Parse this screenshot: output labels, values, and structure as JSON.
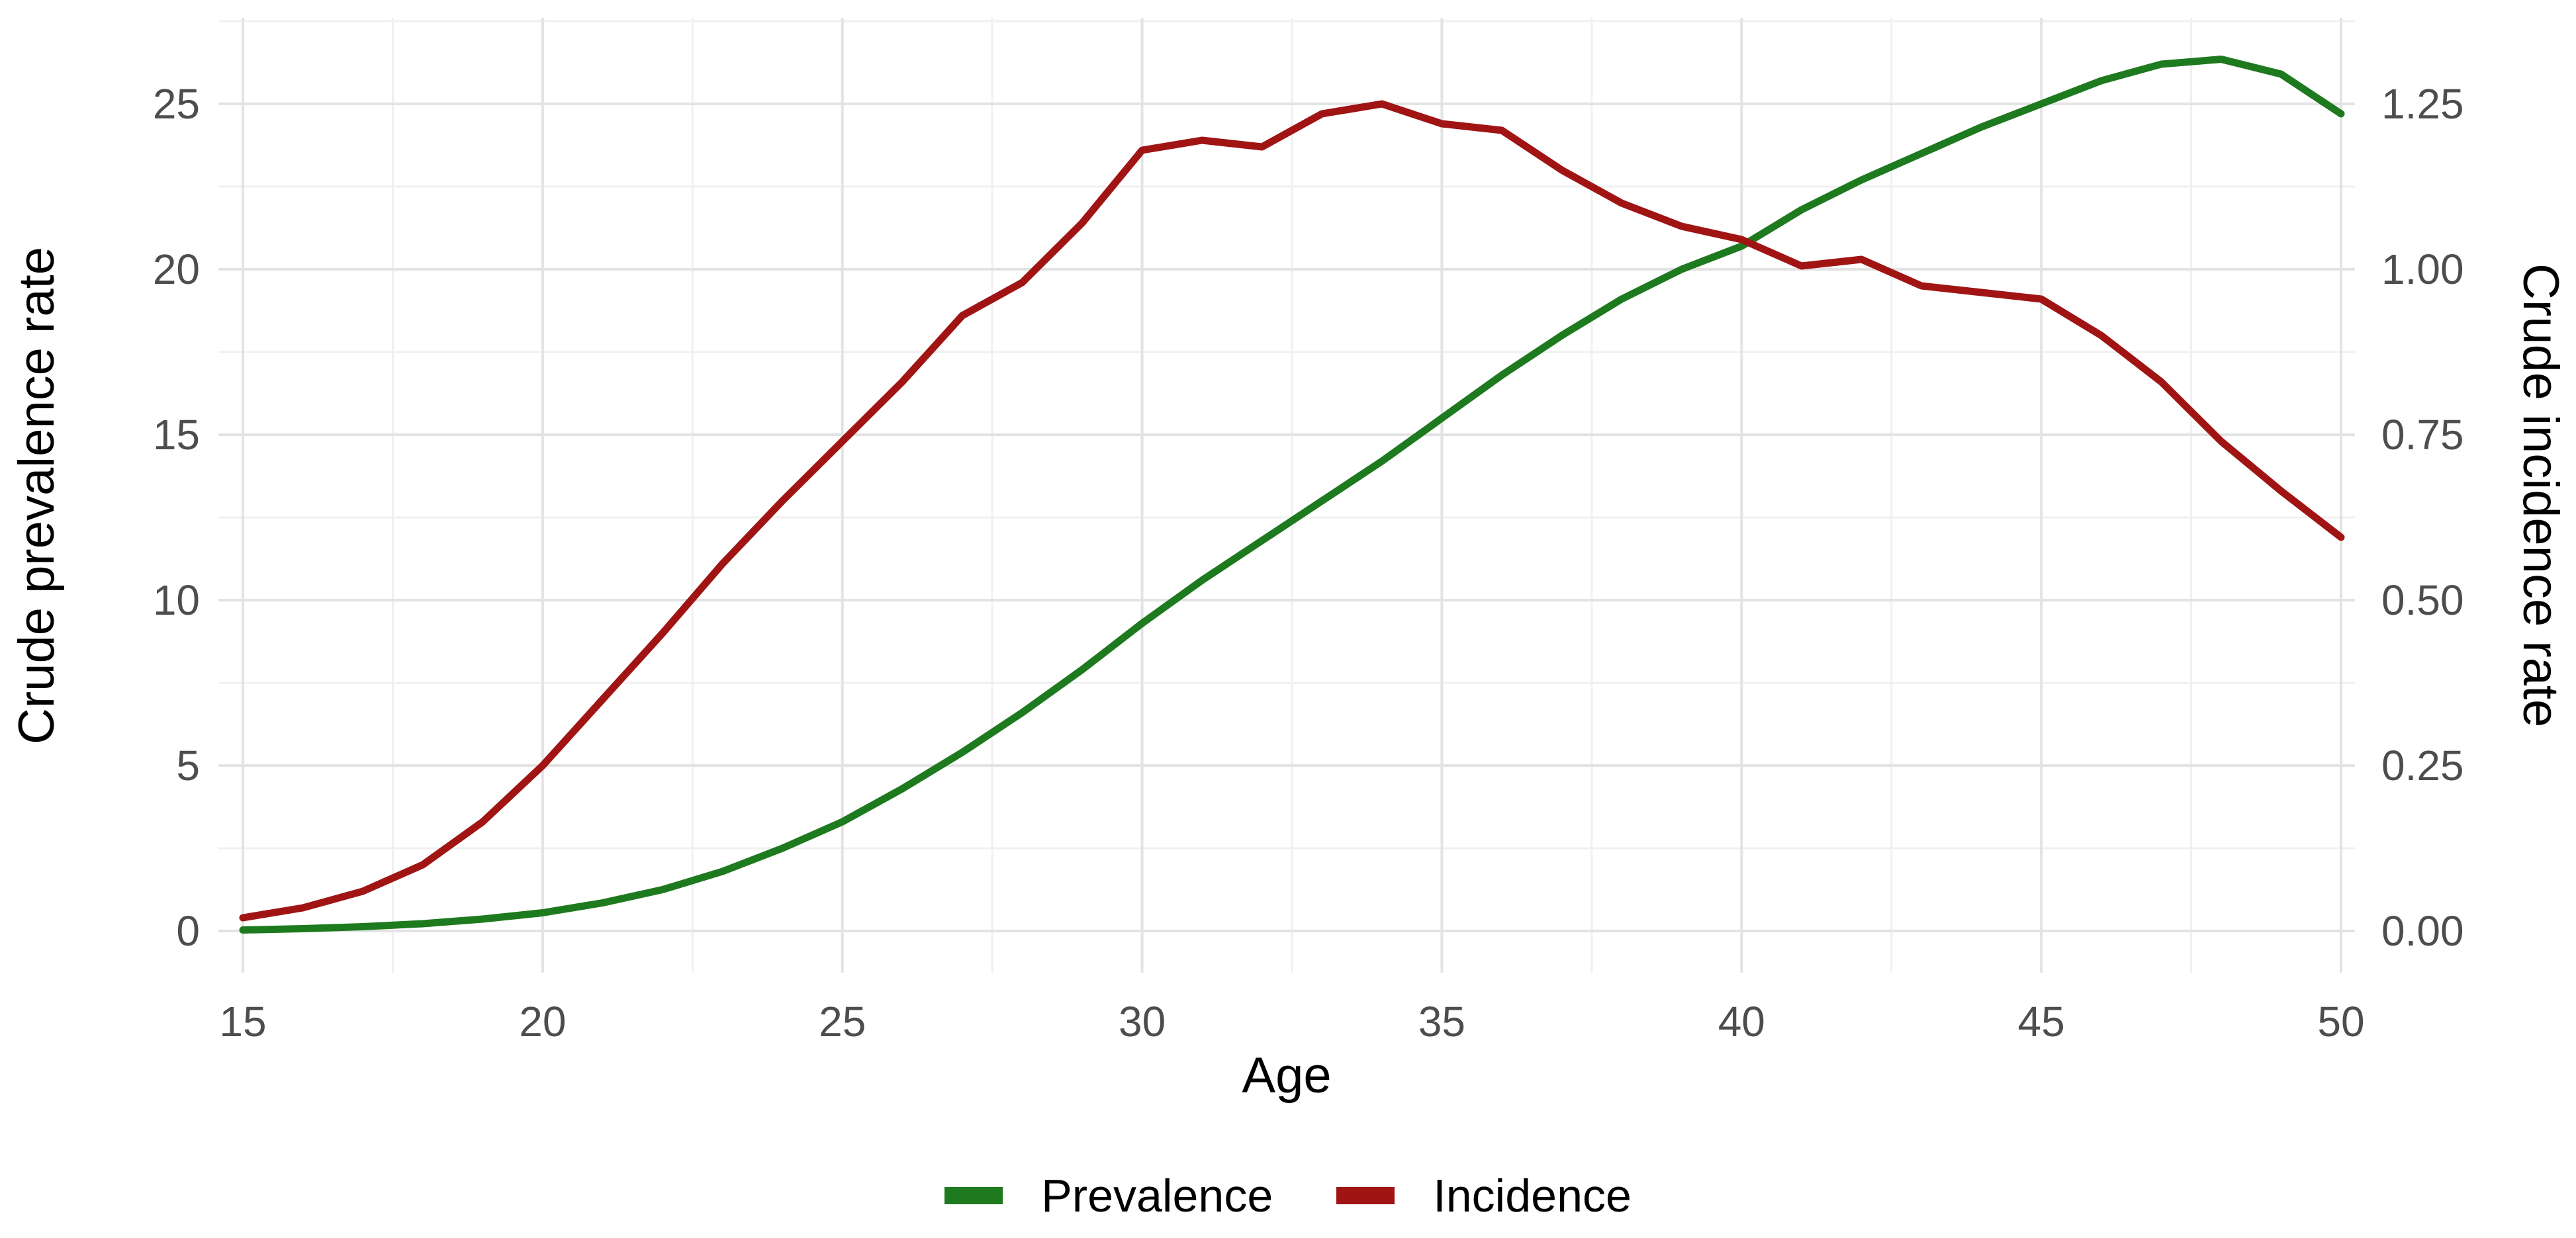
{
  "chart_data": {
    "type": "line",
    "title": "",
    "xlabel": "Age",
    "ylabel_left": "Crude prevalence rate",
    "ylabel_right": "Crude incidence rate",
    "x": [
      15,
      16,
      17,
      18,
      19,
      20,
      21,
      22,
      23,
      24,
      25,
      26,
      27,
      28,
      29,
      30,
      31,
      32,
      33,
      34,
      35,
      36,
      37,
      38,
      39,
      40,
      41,
      42,
      43,
      44,
      45,
      46,
      47,
      48,
      49,
      50
    ],
    "series": [
      {
        "name": "Prevalence",
        "axis": "left",
        "color": "#1e7a1e",
        "values": [
          0.03,
          0.07,
          0.13,
          0.22,
          0.36,
          0.55,
          0.85,
          1.25,
          1.8,
          2.5,
          3.3,
          4.3,
          5.4,
          6.6,
          7.9,
          9.3,
          10.6,
          11.8,
          13.0,
          14.2,
          15.5,
          16.8,
          18.0,
          19.1,
          20.0,
          20.7,
          21.8,
          22.7,
          23.5,
          24.3,
          25.0,
          25.7,
          26.2,
          26.35,
          25.9,
          24.7
        ]
      },
      {
        "name": "Incidence",
        "axis": "right",
        "color": "#a01414",
        "values": [
          0.02,
          0.035,
          0.06,
          0.1,
          0.165,
          0.25,
          0.35,
          0.45,
          0.555,
          0.65,
          0.74,
          0.83,
          0.93,
          0.98,
          1.07,
          1.18,
          1.195,
          1.185,
          1.235,
          1.25,
          1.22,
          1.21,
          1.15,
          1.1,
          1.065,
          1.045,
          1.005,
          1.015,
          0.975,
          0.965,
          0.955,
          0.9,
          0.83,
          0.74,
          0.665,
          0.595
        ]
      }
    ],
    "x_ticks": [
      15,
      20,
      25,
      30,
      35,
      40,
      45,
      50
    ],
    "y_ticks_left": [
      "0",
      "5",
      "10",
      "15",
      "20",
      "25"
    ],
    "y_ticks_left_values": [
      0,
      5,
      10,
      15,
      20,
      25
    ],
    "y_ticks_right": [
      "0.00",
      "0.25",
      "0.50",
      "0.75",
      "1.00",
      "1.25"
    ],
    "y_ticks_right_values": [
      0.0,
      0.25,
      0.5,
      0.75,
      1.0,
      1.25
    ],
    "xlim": [
      14.6,
      50.25
    ],
    "ylim_left": [
      -1.26,
      27.6
    ],
    "ylim_right": [
      -0.063,
      1.38
    ],
    "grid": true,
    "legend_position": "bottom"
  },
  "legend": {
    "items": [
      {
        "label": "Prevalence",
        "color": "#1e7a1e"
      },
      {
        "label": "Incidence",
        "color": "#a01414"
      }
    ]
  },
  "colors": {
    "background": "#ffffff",
    "grid_major": "#e3e3e3",
    "grid_minor": "#f0f0f0",
    "tick_text": "#4d4d4d",
    "title_text": "#000000",
    "prevalence_line": "#1e7a1e",
    "incidence_line": "#a01414"
  }
}
